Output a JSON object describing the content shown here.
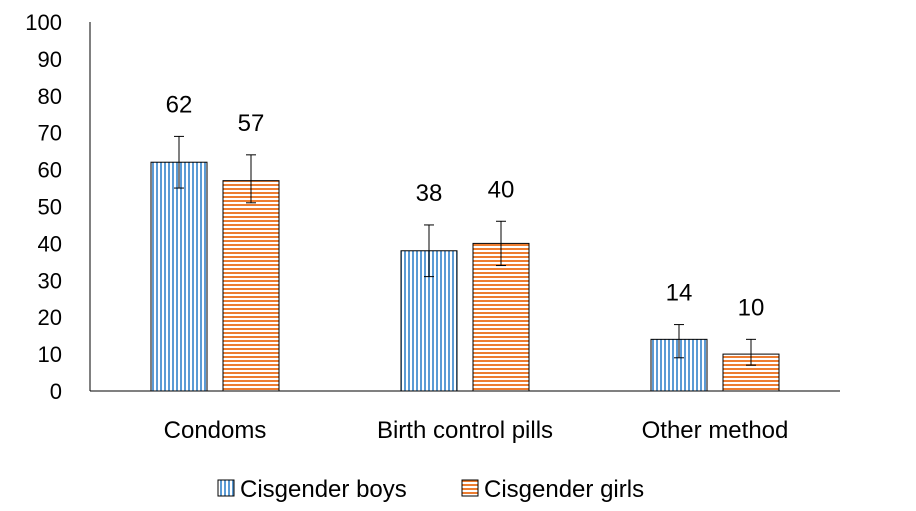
{
  "chart_data": {
    "type": "bar",
    "categories": [
      "Condoms",
      "Birth control pills",
      "Other method"
    ],
    "series": [
      {
        "name": "Cisgender boys",
        "values": [
          62,
          38,
          14
        ],
        "labels": [
          "62",
          "38",
          "14"
        ],
        "error_low": [
          55,
          31,
          9
        ],
        "error_high": [
          69,
          45,
          18
        ],
        "color": "#5b9bd5",
        "pattern": "vertical-stripes"
      },
      {
        "name": "Cisgender girls",
        "values": [
          57,
          40,
          10
        ],
        "labels": [
          "57",
          "40",
          "10"
        ],
        "error_low": [
          51,
          34,
          7
        ],
        "error_high": [
          64,
          46,
          14
        ],
        "color": "#ed7d31",
        "pattern": "horizontal-stripes"
      }
    ],
    "yticks": [
      "0",
      "10",
      "20",
      "30",
      "40",
      "50",
      "60",
      "70",
      "80",
      "90",
      "100"
    ],
    "ylim": [
      0,
      100
    ],
    "title": "",
    "xlabel": "",
    "ylabel": "",
    "legend_position": "bottom"
  }
}
